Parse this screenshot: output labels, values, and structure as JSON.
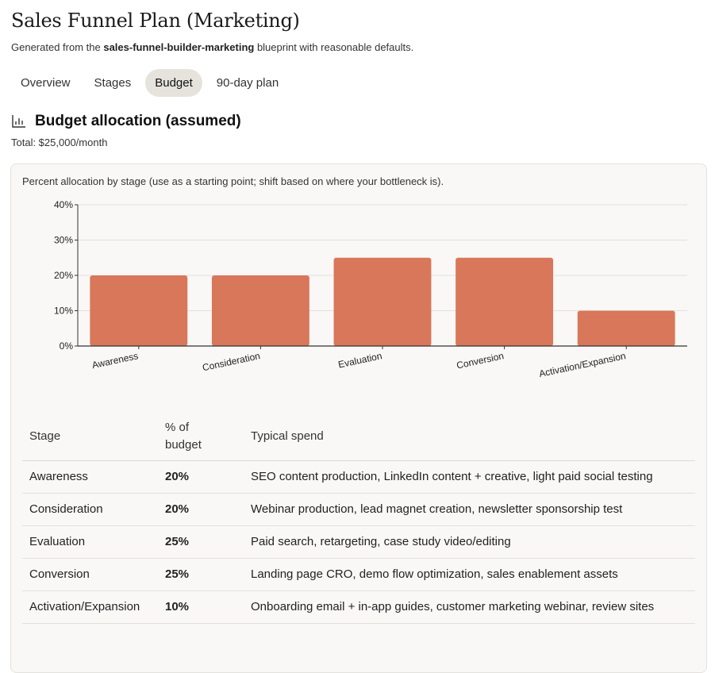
{
  "page": {
    "title": "Sales Funnel Plan (Marketing)",
    "subtitle_prefix": "Generated from the ",
    "subtitle_blueprint": "sales-funnel-builder-marketing",
    "subtitle_suffix": " blueprint with reasonable defaults."
  },
  "tabs": [
    {
      "label": "Overview",
      "active": false
    },
    {
      "label": "Stages",
      "active": false
    },
    {
      "label": "Budget",
      "active": true
    },
    {
      "label": "90-day plan",
      "active": false
    }
  ],
  "section": {
    "icon": "bar-chart-icon",
    "title": "Budget allocation (assumed)",
    "total": "Total: $25,000/month"
  },
  "card": {
    "caption": "Percent allocation by stage (use as a starting point; shift based on where your bottleneck is)."
  },
  "chart_data": {
    "type": "bar",
    "title": "",
    "categories": [
      "Awareness",
      "Consideration",
      "Evaluation",
      "Conversion",
      "Activation/Expansion"
    ],
    "values": [
      20,
      20,
      25,
      25,
      10
    ],
    "ylim": [
      0,
      40
    ],
    "yticks": [
      0,
      10,
      20,
      30,
      40
    ],
    "ytick_labels": [
      "0%",
      "10%",
      "20%",
      "30%",
      "40%"
    ],
    "xlabel": "",
    "ylabel": "",
    "grid": true,
    "bar_color": "#d9775a"
  },
  "table": {
    "headers": {
      "stage": "Stage",
      "pct_line1": "% of",
      "pct_line2": "budget",
      "spend": "Typical spend"
    },
    "rows": [
      {
        "stage": "Awareness",
        "pct": "20%",
        "spend": "SEO content production, LinkedIn content + creative, light paid social testing"
      },
      {
        "stage": "Consideration",
        "pct": "20%",
        "spend": "Webinar production, lead magnet creation, newsletter sponsorship test"
      },
      {
        "stage": "Evaluation",
        "pct": "25%",
        "spend": "Paid search, retargeting, case study video/editing"
      },
      {
        "stage": "Conversion",
        "pct": "25%",
        "spend": "Landing page CRO, demo flow optimization, sales enablement assets"
      },
      {
        "stage": "Activation/Expansion",
        "pct": "10%",
        "spend": "Onboarding email + in-app guides, customer marketing webinar, review sites"
      }
    ]
  }
}
